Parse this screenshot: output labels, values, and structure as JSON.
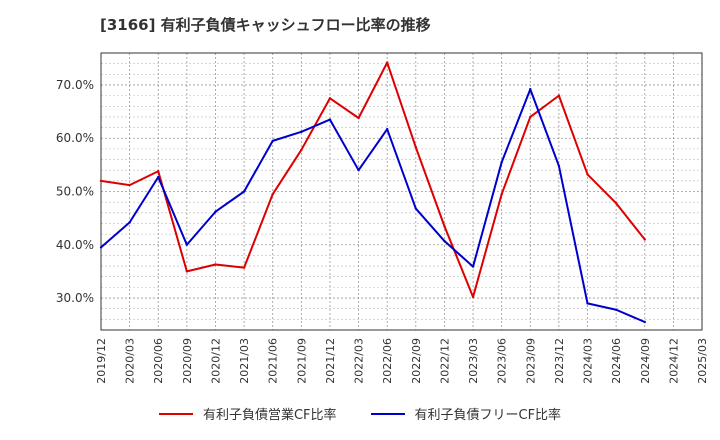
{
  "chart_data": {
    "type": "line",
    "title": "[3166]  有利子負債キャッシュフロー比率の推移",
    "xlabel": "",
    "ylabel": "",
    "x": [
      "2019/12",
      "2020/03",
      "2020/06",
      "2020/09",
      "2020/12",
      "2021/03",
      "2021/06",
      "2021/09",
      "2021/12",
      "2022/03",
      "2022/06",
      "2022/09",
      "2022/12",
      "2023/03",
      "2023/06",
      "2023/09",
      "2023/12",
      "2024/03",
      "2024/06",
      "2024/09",
      "2024/12",
      "2025/03"
    ],
    "ylim": [
      24,
      76
    ],
    "yticks": [
      30,
      40,
      50,
      60,
      70
    ],
    "ytick_labels": [
      "30.0%",
      "40.0%",
      "50.0%",
      "60.0%",
      "70.0%"
    ],
    "grid": true,
    "legend_position": "bottom",
    "series": [
      {
        "name": "有利子負債営業CF比率",
        "color": "#dd0000",
        "values": [
          52.0,
          51.2,
          53.8,
          35.0,
          36.3,
          35.7,
          49.5,
          57.8,
          67.5,
          63.8,
          74.2,
          58.3,
          43.5,
          30.2,
          49.5,
          64.0,
          68.0,
          53.2,
          47.8,
          41.0,
          null,
          null
        ]
      },
      {
        "name": "有利子負債フリーCF比率",
        "color": "#0000cc",
        "values": [
          39.5,
          44.2,
          52.7,
          40.0,
          46.2,
          50.0,
          59.5,
          61.2,
          63.5,
          54.0,
          61.7,
          46.8,
          40.7,
          35.9,
          55.5,
          69.2,
          54.8,
          29.0,
          27.8,
          25.5,
          null,
          null
        ]
      }
    ]
  }
}
